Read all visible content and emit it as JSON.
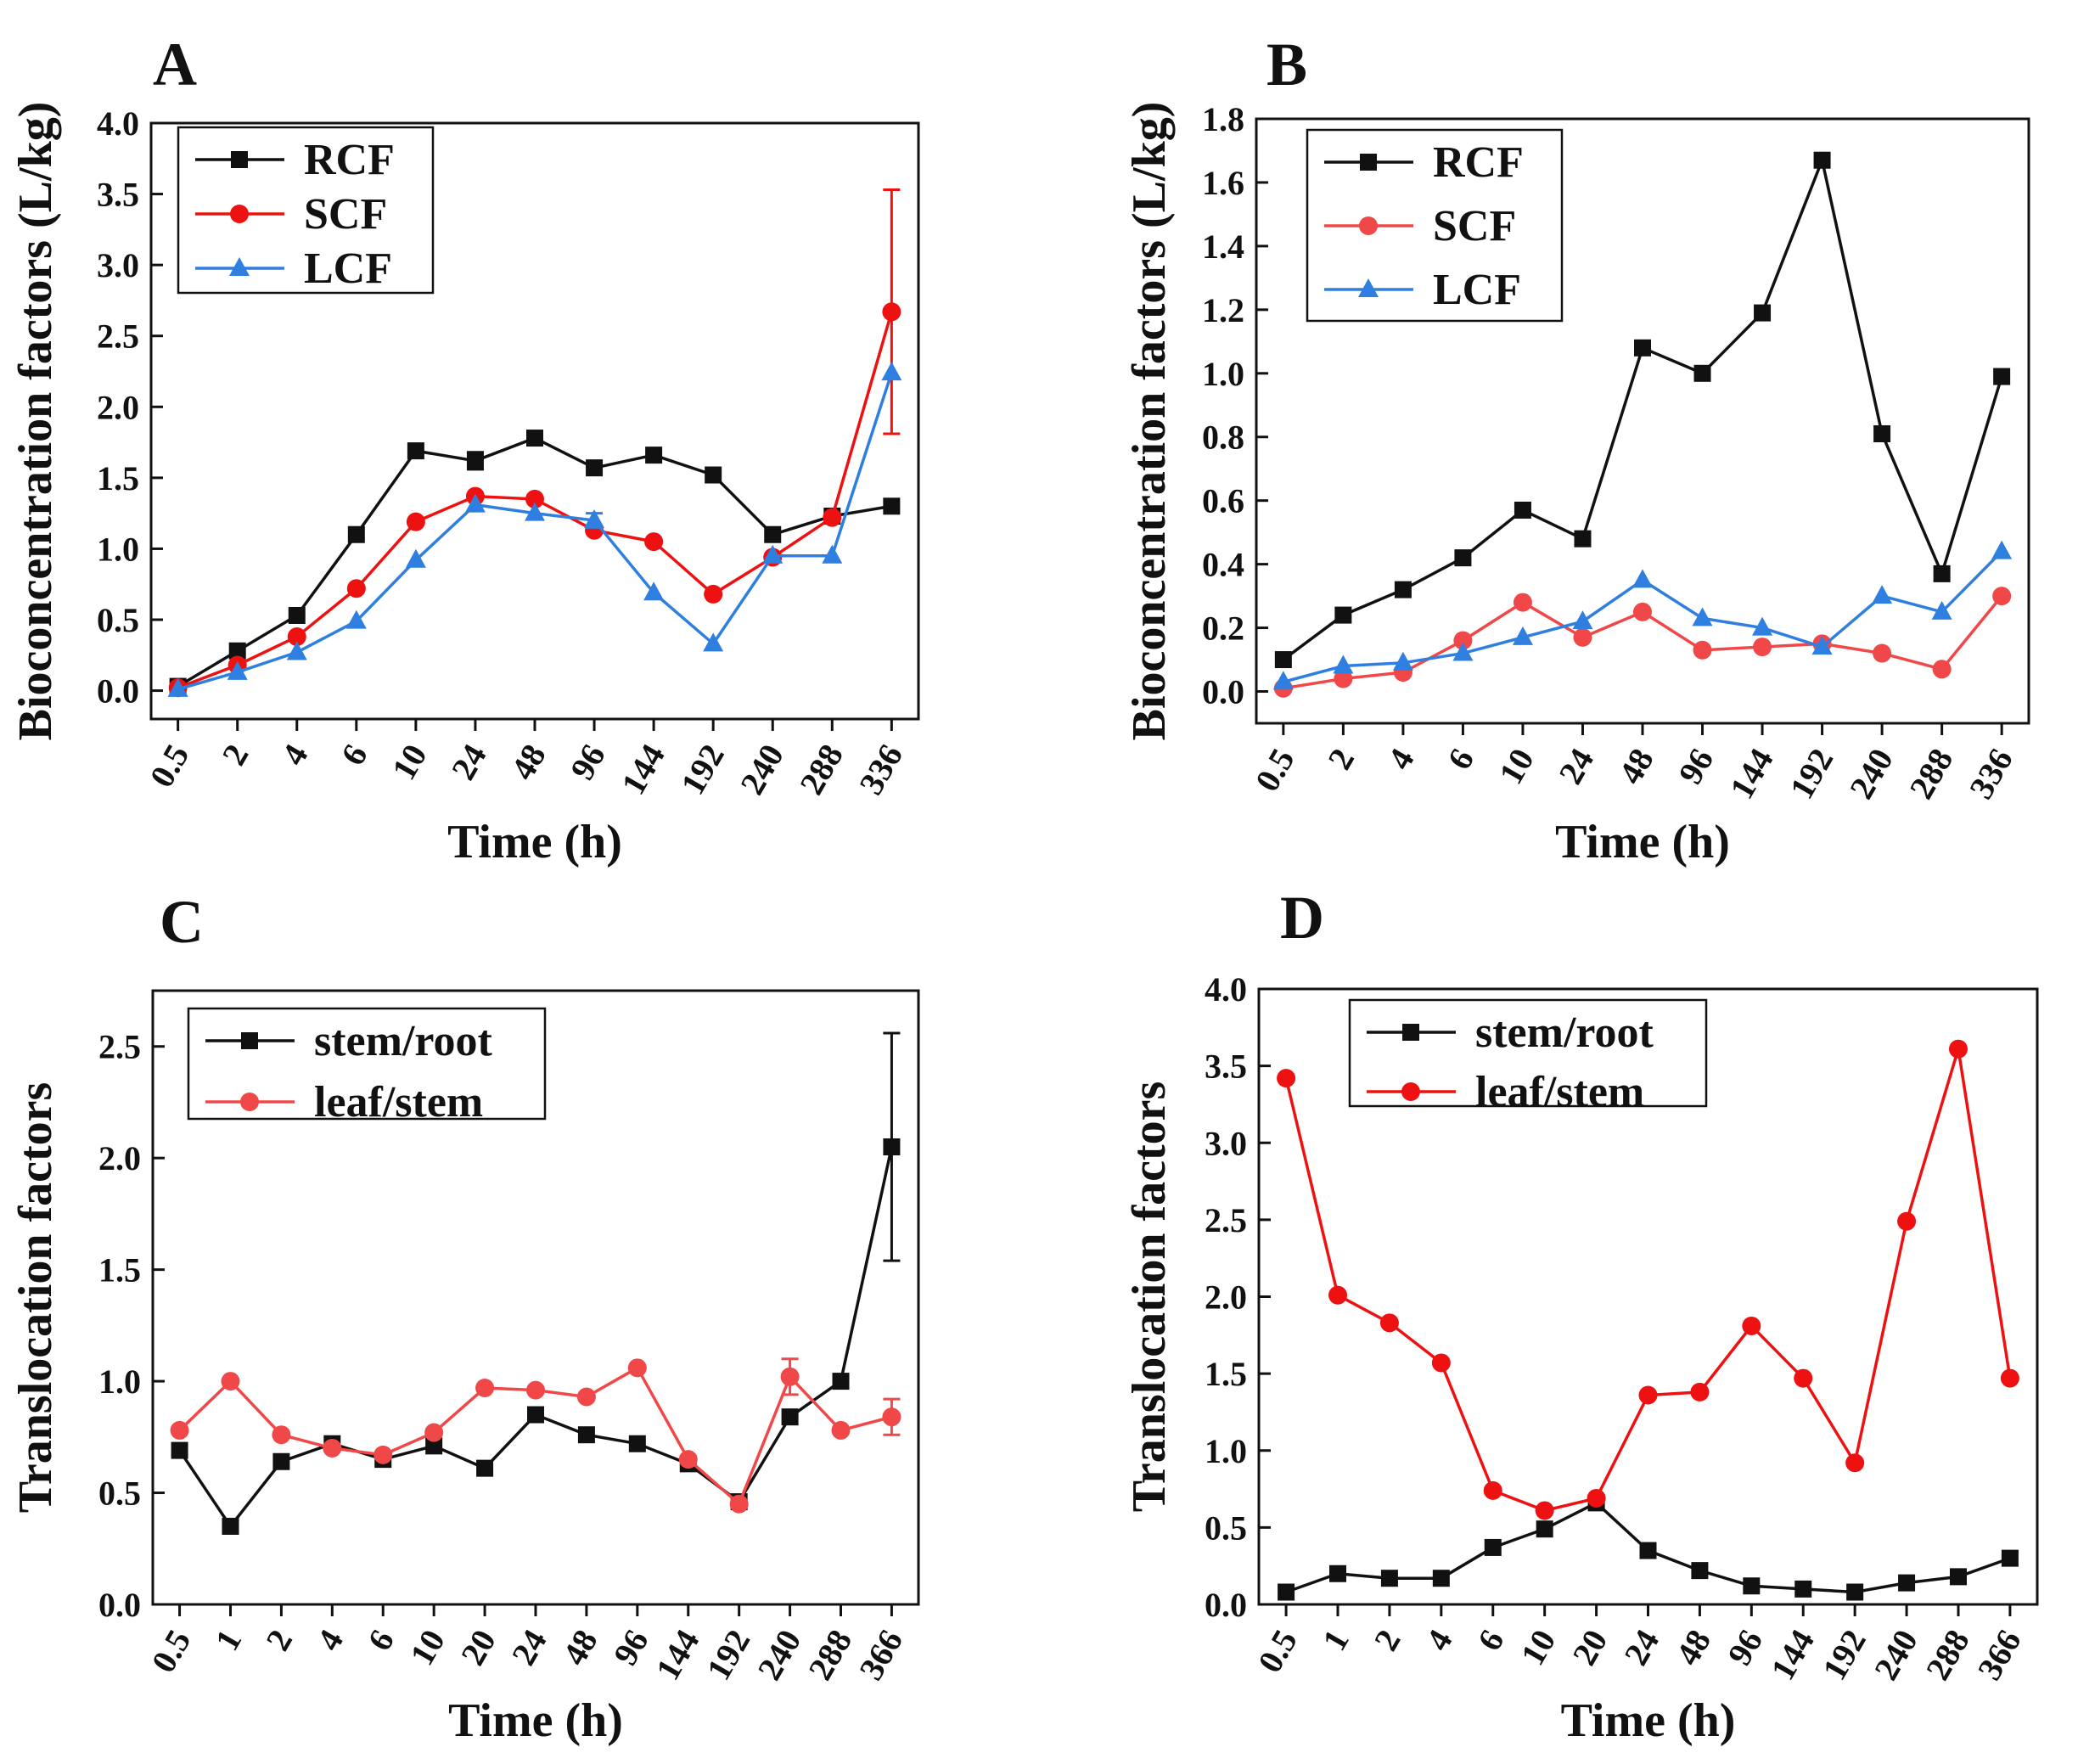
{
  "chart_data": [
    {
      "type": "line",
      "panel_label": "A",
      "xlabel": "Time (h)",
      "ylabel": "Bioconcentration factors (L/kg)",
      "categories": [
        "0.5",
        "2",
        "4",
        "6",
        "10",
        "24",
        "48",
        "96",
        "144",
        "192",
        "240",
        "288",
        "336"
      ],
      "ylim": [
        -0.2,
        4.0
      ],
      "yticks": [
        "0.0",
        "0.5",
        "1.0",
        "1.5",
        "2.0",
        "2.5",
        "3.0",
        "3.5",
        "4.0"
      ],
      "legend_position": "top-left",
      "grid": false,
      "series": [
        {
          "name": "RCF",
          "color": "#111111",
          "marker": "square",
          "values": [
            0.03,
            0.28,
            0.53,
            1.1,
            1.69,
            1.62,
            1.78,
            1.57,
            1.66,
            1.52,
            1.1,
            1.23,
            1.3
          ],
          "errors": [
            0,
            0,
            0,
            0,
            0,
            0.06,
            0,
            0,
            0,
            0,
            0,
            0,
            0
          ]
        },
        {
          "name": "SCF",
          "color": "#ee1111",
          "marker": "circle",
          "values": [
            0.02,
            0.18,
            0.38,
            0.72,
            1.19,
            1.37,
            1.35,
            1.13,
            1.05,
            0.68,
            0.94,
            1.22,
            2.67
          ],
          "errors": [
            0,
            0,
            0,
            0,
            0,
            0,
            0,
            0,
            0,
            0,
            0,
            0,
            0.86
          ]
        },
        {
          "name": "LCF",
          "color": "#2f7fe0",
          "marker": "triangle",
          "values": [
            0.01,
            0.13,
            0.27,
            0.49,
            0.92,
            1.31,
            1.25,
            1.2,
            0.69,
            0.33,
            0.95,
            0.95,
            2.24
          ],
          "errors": [
            0,
            0,
            0,
            0,
            0,
            0,
            0,
            0.05,
            0,
            0,
            0,
            0,
            0
          ]
        }
      ]
    },
    {
      "type": "line",
      "panel_label": "B",
      "xlabel": "Time (h)",
      "ylabel": "Bioconcentration factors (L/kg)",
      "categories": [
        "0.5",
        "2",
        "4",
        "6",
        "10",
        "24",
        "48",
        "96",
        "144",
        "192",
        "240",
        "288",
        "336"
      ],
      "ylim": [
        -0.1,
        1.8
      ],
      "yticks": [
        "0.0",
        "0.2",
        "0.4",
        "0.6",
        "0.8",
        "1.0",
        "1.2",
        "1.4",
        "1.6",
        "1.8"
      ],
      "legend_position": "top-left",
      "grid": false,
      "series": [
        {
          "name": "RCF",
          "color": "#111111",
          "marker": "square",
          "values": [
            0.1,
            0.24,
            0.32,
            0.42,
            0.57,
            0.48,
            1.08,
            1.0,
            1.19,
            1.67,
            0.81,
            0.37,
            0.99
          ],
          "errors": [
            0,
            0,
            0,
            0,
            0,
            0,
            0,
            0,
            0,
            0,
            0,
            0,
            0
          ]
        },
        {
          "name": "SCF",
          "color": "#f04848",
          "marker": "circle",
          "values": [
            0.01,
            0.04,
            0.06,
            0.16,
            0.28,
            0.17,
            0.25,
            0.13,
            0.14,
            0.15,
            0.12,
            0.07,
            0.3
          ],
          "errors": [
            0,
            0,
            0,
            0,
            0,
            0,
            0,
            0,
            0,
            0,
            0,
            0,
            0
          ]
        },
        {
          "name": "LCF",
          "color": "#2f7fe0",
          "marker": "triangle",
          "values": [
            0.03,
            0.08,
            0.09,
            0.12,
            0.17,
            0.22,
            0.35,
            0.23,
            0.2,
            0.14,
            0.3,
            0.25,
            0.44
          ],
          "errors": [
            0,
            0,
            0,
            0,
            0,
            0,
            0,
            0,
            0,
            0,
            0,
            0,
            0
          ]
        }
      ]
    },
    {
      "type": "line",
      "panel_label": "C",
      "xlabel": "Time (h)",
      "ylabel": "Translocation  factors",
      "categories": [
        "0.5",
        "1",
        "2",
        "4",
        "6",
        "10",
        "20",
        "24",
        "48",
        "96",
        "144",
        "192",
        "240",
        "288",
        "366"
      ],
      "ylim": [
        0.0,
        2.75
      ],
      "yticks": [
        "0.0",
        "0.5",
        "1.0",
        "1.5",
        "2.0",
        "2.5"
      ],
      "legend_position": "top-left",
      "grid": false,
      "series": [
        {
          "name": "stem/root",
          "color": "#111111",
          "marker": "square",
          "values": [
            0.69,
            0.35,
            0.64,
            0.72,
            0.65,
            0.71,
            0.61,
            0.85,
            0.76,
            0.72,
            0.63,
            0.46,
            0.84,
            1.0,
            2.05
          ],
          "errors": [
            0,
            0,
            0,
            0,
            0,
            0,
            0,
            0,
            0,
            0,
            0,
            0,
            0,
            0,
            0.51
          ]
        },
        {
          "name": "leaf/stem",
          "color": "#f04848",
          "marker": "circle",
          "values": [
            0.78,
            1.0,
            0.76,
            0.7,
            0.67,
            0.77,
            0.97,
            0.96,
            0.93,
            1.06,
            0.65,
            0.45,
            1.02,
            0.78,
            0.84
          ],
          "errors": [
            0,
            0,
            0,
            0,
            0,
            0,
            0,
            0,
            0,
            0,
            0,
            0,
            0.08,
            0,
            0.08
          ]
        }
      ]
    },
    {
      "type": "line",
      "panel_label": "D",
      "xlabel": "Time (h)",
      "ylabel": "Translocation  factors",
      "categories": [
        "0.5",
        "1",
        "2",
        "4",
        "6",
        "10",
        "20",
        "24",
        "48",
        "96",
        "144",
        "192",
        "240",
        "288",
        "366"
      ],
      "ylim": [
        0.0,
        4.0
      ],
      "yticks": [
        "0.0",
        "0.5",
        "1.0",
        "1.5",
        "2.0",
        "2.5",
        "3.0",
        "3.5",
        "4.0"
      ],
      "legend_position": "top-left",
      "grid": false,
      "series": [
        {
          "name": "stem/root",
          "color": "#111111",
          "marker": "square",
          "values": [
            0.08,
            0.2,
            0.17,
            0.17,
            0.37,
            0.49,
            0.66,
            0.35,
            0.22,
            0.12,
            0.1,
            0.08,
            0.14,
            0.18,
            0.3
          ],
          "errors": [
            0,
            0,
            0,
            0,
            0,
            0,
            0,
            0,
            0,
            0,
            0,
            0,
            0,
            0,
            0
          ]
        },
        {
          "name": "leaf/stem",
          "color": "#ee1111",
          "marker": "circle",
          "values": [
            3.42,
            2.01,
            1.83,
            1.57,
            0.74,
            0.61,
            0.69,
            1.36,
            1.38,
            1.81,
            1.47,
            0.92,
            2.49,
            3.61,
            1.47
          ],
          "errors": [
            0,
            0,
            0,
            0,
            0,
            0,
            0,
            0,
            0,
            0,
            0,
            0,
            0,
            0,
            0
          ]
        }
      ]
    }
  ]
}
